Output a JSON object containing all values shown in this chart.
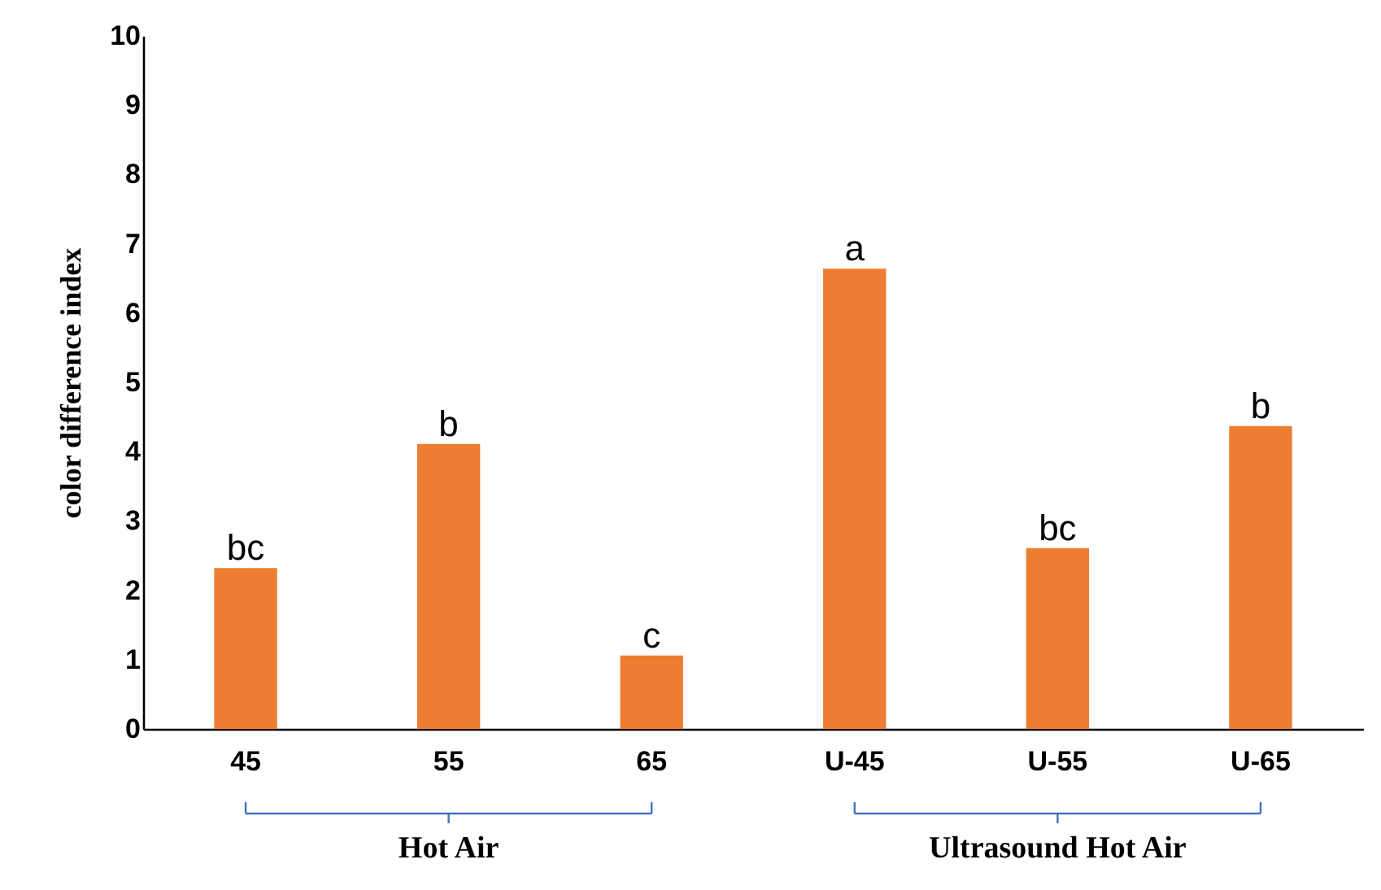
{
  "chart_data": {
    "type": "bar",
    "ylabel": "color difference index",
    "categories": [
      "45",
      "55",
      "65",
      "U-45",
      "U-55",
      "U-65"
    ],
    "values": [
      2.32,
      4.11,
      1.06,
      6.64,
      2.61,
      4.37
    ],
    "color": "#ed7d31",
    "ylim": [
      0,
      10
    ],
    "yticks": [
      0,
      1,
      2,
      3,
      4,
      5,
      6,
      7,
      8,
      9,
      10
    ],
    "grid": false,
    "annotations": [
      {
        "text": "bc",
        "x": "45",
        "y": 2.32
      },
      {
        "text": "b",
        "x": "55",
        "y": 4.11
      },
      {
        "text": "c",
        "x": "65",
        "y": 1.06
      },
      {
        "text": "a",
        "x": "U-45",
        "y": 6.64
      },
      {
        "text": "bc",
        "x": "U-55",
        "y": 2.61
      },
      {
        "text": "b",
        "x": "U-65",
        "y": 4.37
      },
      {
        "text": "Hot Air",
        "x": "55"
      },
      {
        "text": "Ultrasound Hot Air",
        "x": "U-55"
      }
    ]
  }
}
